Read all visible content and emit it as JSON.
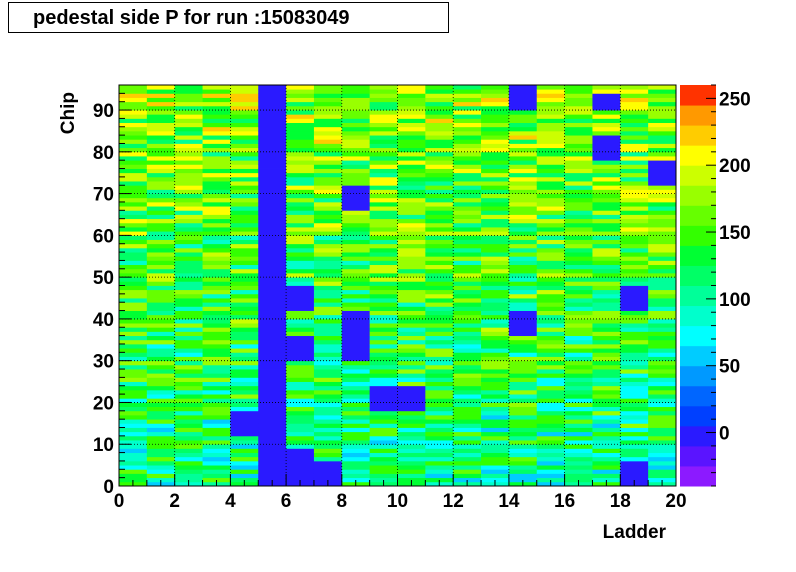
{
  "chart_data": {
    "type": "heatmap",
    "title": "pedestal side P for run :15083049",
    "xlabel": "Ladder",
    "ylabel": "Chip",
    "xlim": [
      0,
      20
    ],
    "ylim": [
      0,
      96
    ],
    "x_ticks": [
      "0",
      "2",
      "4",
      "6",
      "8",
      "10",
      "12",
      "14",
      "16",
      "18",
      "20"
    ],
    "y_ticks": [
      "0",
      "10",
      "20",
      "30",
      "40",
      "50",
      "60",
      "70",
      "80",
      "90"
    ],
    "colorbar": {
      "min": -40,
      "max": 260,
      "ticks": [
        "0",
        "50",
        "100",
        "150",
        "200",
        "250"
      ]
    },
    "grid": true,
    "nx": 20,
    "ny": 96,
    "typical_pedestal": 140,
    "values_note": "",
    "dead_regions": [
      {
        "ladders": [
          5,
          6
        ],
        "chips": [
          0,
          96
        ],
        "value": 0
      },
      {
        "ladders": [
          4,
          5
        ],
        "chips": [
          12,
          18
        ],
        "value": 0
      },
      {
        "ladders": [
          6,
          7
        ],
        "chips": [
          42,
          48
        ],
        "value": 0
      },
      {
        "ladders": [
          6,
          7
        ],
        "chips": [
          30,
          36
        ],
        "value": 0
      },
      {
        "ladders": [
          6,
          7
        ],
        "chips": [
          0,
          9
        ],
        "value": 0
      },
      {
        "ladders": [
          7,
          8
        ],
        "chips": [
          0,
          6
        ],
        "value": 0
      },
      {
        "ladders": [
          8,
          9
        ],
        "chips": [
          30,
          42
        ],
        "value": 0
      },
      {
        "ladders": [
          8,
          9
        ],
        "chips": [
          66,
          72
        ],
        "value": 0
      },
      {
        "ladders": [
          9,
          10
        ],
        "chips": [
          18,
          24
        ],
        "value": 0
      },
      {
        "ladders": [
          10,
          11
        ],
        "chips": [
          18,
          24
        ],
        "value": 0
      },
      {
        "ladders": [
          14,
          15
        ],
        "chips": [
          36,
          42
        ],
        "value": 0
      },
      {
        "ladders": [
          14,
          15
        ],
        "chips": [
          90,
          96
        ],
        "value": 0
      },
      {
        "ladders": [
          17,
          18
        ],
        "chips": [
          78,
          84
        ],
        "value": 0
      },
      {
        "ladders": [
          17,
          18
        ],
        "chips": [
          90,
          94
        ],
        "value": 0
      },
      {
        "ladders": [
          18,
          19
        ],
        "chips": [
          42,
          48
        ],
        "value": 0
      },
      {
        "ladders": [
          18,
          19
        ],
        "chips": [
          0,
          6
        ],
        "value": 0
      },
      {
        "ladders": [
          19,
          20
        ],
        "chips": [
          72,
          78
        ],
        "value": 0
      }
    ]
  }
}
